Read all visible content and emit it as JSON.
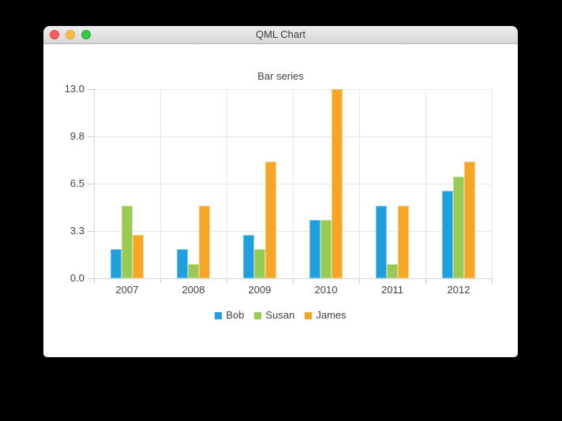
{
  "window": {
    "title": "QML Chart",
    "controls": [
      {
        "name": "close",
        "color": "#fc5d57",
        "border": "#e0443c"
      },
      {
        "name": "minimize",
        "color": "#fdbe41",
        "border": "#dfa133"
      },
      {
        "name": "zoom",
        "color": "#34c84a",
        "border": "#24a339"
      }
    ]
  },
  "chart_data": {
    "type": "bar",
    "title": "Bar series",
    "categories": [
      "2007",
      "2008",
      "2009",
      "2010",
      "2011",
      "2012"
    ],
    "series": [
      {
        "name": "Bob",
        "color": "#209fdf",
        "border_color": "#7ec7ec",
        "values": [
          2,
          2,
          3,
          4,
          5,
          6
        ]
      },
      {
        "name": "Susan",
        "color": "#99ca53",
        "border_color": "#c3e09b",
        "values": [
          5,
          1,
          2,
          4,
          1,
          7
        ]
      },
      {
        "name": "James",
        "color": "#f6a625",
        "border_color": "#fac97e",
        "values": [
          3,
          5,
          8,
          13,
          5,
          8
        ]
      }
    ],
    "ylim": [
      0,
      13
    ],
    "y_tick_labels": [
      "0.0",
      "3.3",
      "6.5",
      "9.8",
      "13.0"
    ],
    "grid": true,
    "legend_position": "bottom",
    "text_color": "#404044",
    "grid_color": "#e7e7e7",
    "axis_line_color": "#d6d6d6",
    "tick_color": "#c9c9c9",
    "bar_width_ratio": 0.5
  }
}
